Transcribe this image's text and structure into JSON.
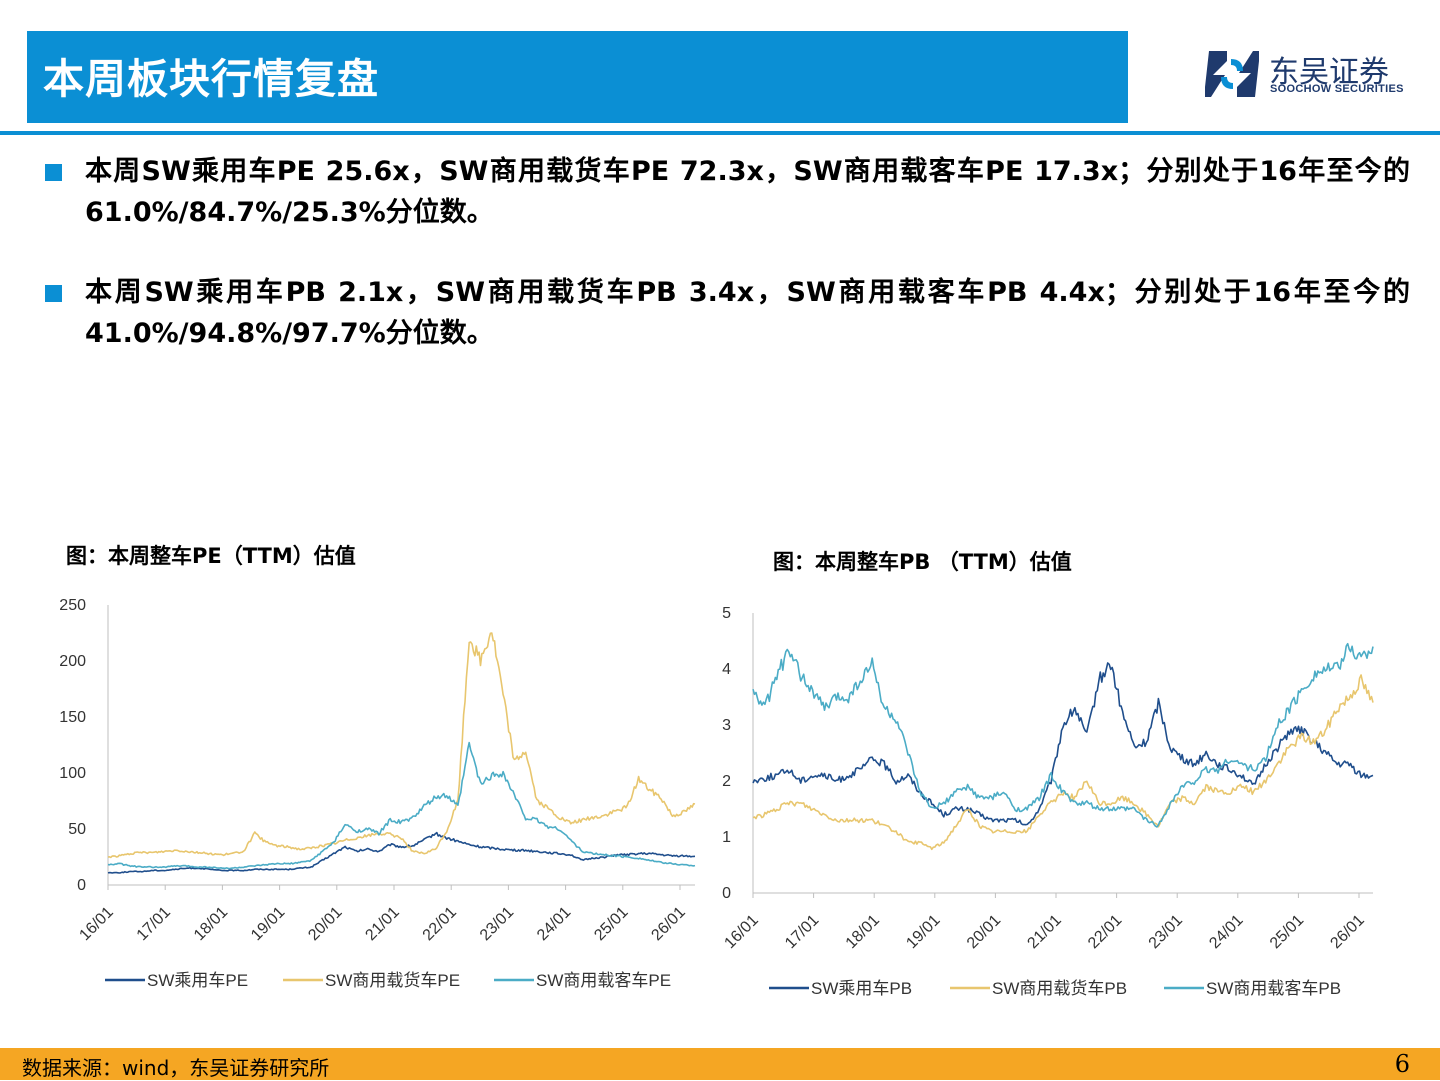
{
  "header": {
    "title": "本周板块行情复盘"
  },
  "logo": {
    "name": "东吴证券",
    "sub": "SOOCHOW SECURITIES"
  },
  "bullets": [
    "本周SW乘用车PE  25.6x，SW商用载货车PE  72.3x，SW商用载客车PE  17.3x；分别处于16年至今的61.0%/84.7%/25.3%分位数。",
    "本周SW乘用车PB  2.1x，SW商用载货车PB  3.4x，SW商用载客车PB  4.4x；分别处于16年至今的41.0%/94.8%/97.7%分位数。"
  ],
  "colors": {
    "accent": "#0b8fd4",
    "footer": "#f5a623",
    "navy": "#1f4e8c",
    "gold": "#e8c66e",
    "teal": "#4bacc6"
  },
  "chart_data": [
    {
      "type": "line",
      "title": "图：本周整车PE（TTM）估值",
      "ylim": [
        0,
        250
      ],
      "yticks": [
        0,
        50,
        100,
        150,
        200,
        250
      ],
      "xticks": [
        "16/01",
        "17/01",
        "18/01",
        "19/01",
        "20/01",
        "21/01",
        "22/01",
        "23/01",
        "24/01",
        "25/01",
        "26/01"
      ],
      "legend_position": "bottom",
      "series": [
        {
          "name": "SW乘用车PE",
          "color": "#1f4e8c",
          "values": [
            11,
            11,
            12,
            12,
            13,
            13,
            14,
            15,
            15,
            14,
            13,
            13,
            13,
            14,
            14,
            14,
            14,
            15,
            16,
            22,
            28,
            34,
            30,
            32,
            30,
            36,
            34,
            35,
            40,
            46,
            42,
            39,
            36,
            34,
            33,
            32,
            31,
            31,
            30,
            29,
            28,
            27,
            22,
            24,
            25,
            27,
            27,
            28,
            28,
            27,
            26,
            26,
            25.6
          ]
        },
        {
          "name": "SW商用载货车PE",
          "color": "#e8c66e",
          "values": [
            25,
            26,
            28,
            29,
            29,
            30,
            31,
            30,
            29,
            28,
            27,
            28,
            30,
            46,
            38,
            35,
            34,
            32,
            33,
            35,
            37,
            40,
            42,
            44,
            46,
            45,
            42,
            30,
            28,
            32,
            48,
            75,
            221,
            200,
            228,
            170,
            110,
            120,
            75,
            68,
            60,
            55,
            58,
            60,
            62,
            66,
            70,
            95,
            85,
            78,
            62,
            65,
            72.3
          ]
        },
        {
          "name": "SW商用载客车PE",
          "color": "#4bacc6",
          "values": [
            18,
            19,
            17,
            16,
            16,
            16,
            17,
            17,
            16,
            16,
            15,
            15,
            16,
            17,
            18,
            19,
            19,
            20,
            22,
            30,
            38,
            54,
            48,
            50,
            46,
            58,
            56,
            60,
            70,
            78,
            80,
            70,
            126,
            90,
            98,
            100,
            80,
            60,
            58,
            52,
            50,
            40,
            30,
            28,
            27,
            26,
            25,
            24,
            22,
            20,
            19,
            18,
            17.3
          ]
        }
      ]
    },
    {
      "type": "line",
      "title": "图：本周整车PB （TTM）估值",
      "ylim": [
        0,
        5
      ],
      "yticks": [
        0,
        1,
        2,
        3,
        4,
        5
      ],
      "xticks": [
        "16/01",
        "17/01",
        "18/01",
        "19/01",
        "20/01",
        "21/01",
        "22/01",
        "23/01",
        "24/01",
        "25/01",
        "26/01"
      ],
      "legend_position": "bottom",
      "series": [
        {
          "name": "SW乘用车PB",
          "color": "#1f4e8c",
          "values": [
            2.0,
            2.05,
            2.1,
            2.2,
            2.0,
            2.1,
            2.1,
            2.0,
            2.1,
            2.2,
            2.4,
            2.3,
            2.0,
            2.1,
            1.8,
            1.6,
            1.4,
            1.5,
            1.5,
            1.4,
            1.3,
            1.3,
            1.3,
            1.2,
            1.5,
            2.0,
            3.0,
            3.3,
            2.8,
            3.8,
            4.1,
            3.2,
            2.6,
            2.7,
            3.4,
            2.6,
            2.4,
            2.3,
            2.5,
            2.3,
            2.2,
            2.1,
            1.9,
            2.3,
            2.6,
            2.9,
            2.9,
            2.7,
            2.5,
            2.3,
            2.3,
            2.1,
            2.1
          ]
        },
        {
          "name": "SW商用载货车PB",
          "color": "#e8c66e",
          "values": [
            1.35,
            1.4,
            1.5,
            1.6,
            1.6,
            1.5,
            1.4,
            1.3,
            1.3,
            1.3,
            1.3,
            1.2,
            1.1,
            0.9,
            0.9,
            0.8,
            0.9,
            1.2,
            1.5,
            1.2,
            1.1,
            1.1,
            1.1,
            1.1,
            1.4,
            1.6,
            1.8,
            1.7,
            2.0,
            1.6,
            1.6,
            1.7,
            1.6,
            1.4,
            1.2,
            1.6,
            1.7,
            1.6,
            1.9,
            1.8,
            1.8,
            1.9,
            1.8,
            2.0,
            2.3,
            2.6,
            2.8,
            2.7,
            2.9,
            3.3,
            3.5,
            3.8,
            3.4
          ]
        },
        {
          "name": "SW商用载客车PB",
          "color": "#4bacc6",
          "values": [
            3.6,
            3.3,
            3.9,
            4.3,
            3.9,
            3.6,
            3.3,
            3.5,
            3.5,
            3.8,
            4.1,
            3.3,
            3.1,
            2.5,
            1.8,
            1.5,
            1.6,
            1.8,
            1.9,
            1.7,
            1.7,
            1.8,
            1.5,
            1.5,
            1.7,
            2.1,
            1.8,
            1.6,
            1.6,
            1.5,
            1.5,
            1.5,
            1.5,
            1.3,
            1.2,
            1.6,
            1.9,
            2.0,
            2.2,
            2.2,
            2.4,
            2.3,
            2.2,
            2.4,
            3.0,
            3.3,
            3.6,
            3.9,
            4.0,
            4.0,
            4.4,
            4.2,
            4.4
          ]
        }
      ]
    }
  ],
  "footer": {
    "source": "数据来源：wind，东吴证券研究所",
    "page": "6"
  }
}
